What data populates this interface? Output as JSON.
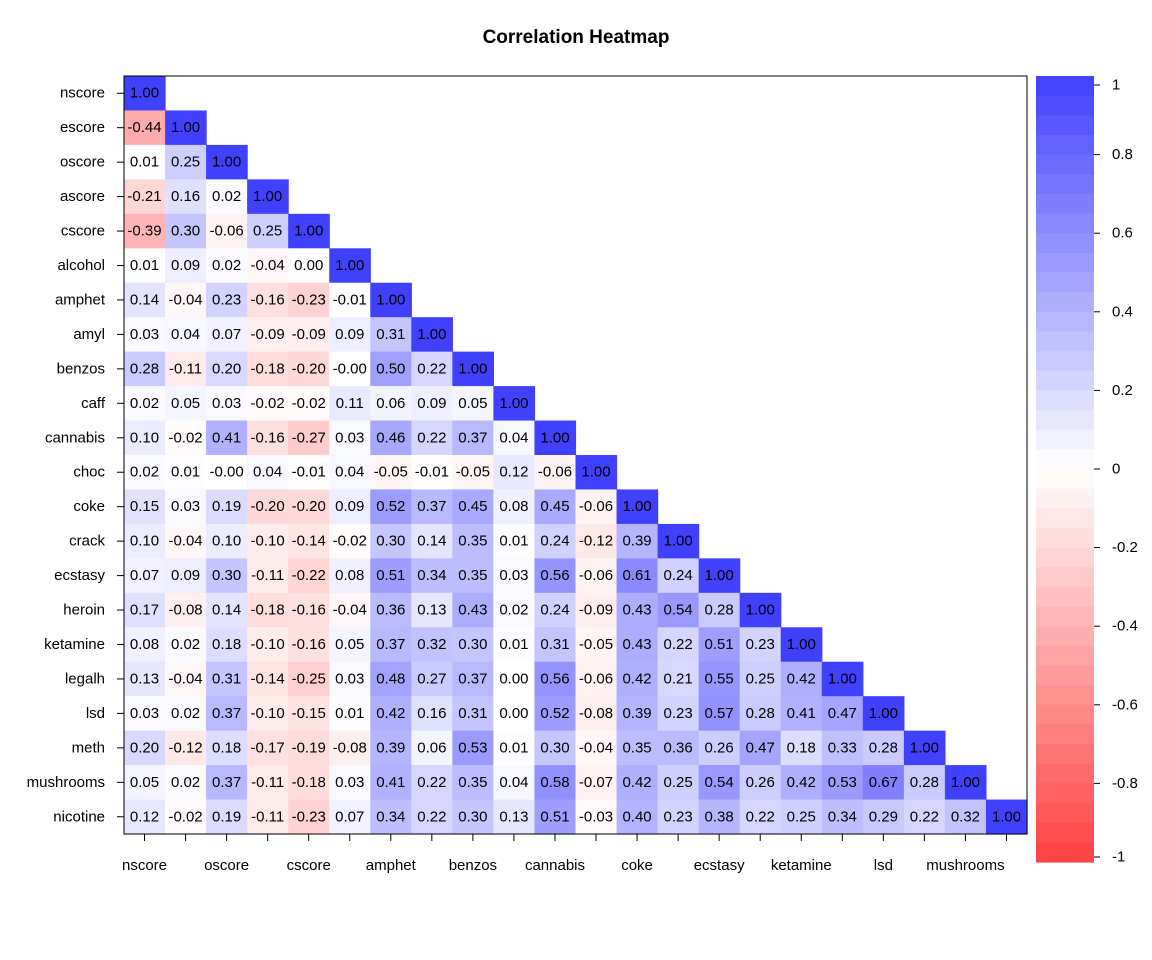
{
  "chart_data": {
    "type": "heatmap",
    "title": "Correlation Heatmap",
    "variables": [
      "nscore",
      "escore",
      "oscore",
      "ascore",
      "cscore",
      "alcohol",
      "amphet",
      "amyl",
      "benzos",
      "caff",
      "cannabis",
      "choc",
      "coke",
      "crack",
      "ecstasy",
      "heroin",
      "ketamine",
      "legalh",
      "lsd",
      "meth",
      "mushrooms",
      "nicotine"
    ],
    "x_tick_labels": [
      "nscore",
      "oscore",
      "cscore",
      "amphet",
      "benzos",
      "cannabis",
      "coke",
      "ecstasy",
      "ketamine",
      "lsd",
      "mushrooms"
    ],
    "matrix_lower": [
      [
        "1.00"
      ],
      [
        "-0.44",
        "1.00"
      ],
      [
        "0.01",
        "0.25",
        "1.00"
      ],
      [
        "-0.21",
        "0.16",
        "0.02",
        "1.00"
      ],
      [
        "-0.39",
        "0.30",
        "-0.06",
        "0.25",
        "1.00"
      ],
      [
        "0.01",
        "0.09",
        "0.02",
        "-0.04",
        "0.00",
        "1.00"
      ],
      [
        "0.14",
        "-0.04",
        "0.23",
        "-0.16",
        "-0.23",
        "-0.01",
        "1.00"
      ],
      [
        "0.03",
        "0.04",
        "0.07",
        "-0.09",
        "-0.09",
        "0.09",
        "0.31",
        "1.00"
      ],
      [
        "0.28",
        "-0.11",
        "0.20",
        "-0.18",
        "-0.20",
        "-0.00",
        "0.50",
        "0.22",
        "1.00"
      ],
      [
        "0.02",
        "0.05",
        "0.03",
        "-0.02",
        "-0.02",
        "0.11",
        "0.06",
        "0.09",
        "0.05",
        "1.00"
      ],
      [
        "0.10",
        "-0.02",
        "0.41",
        "-0.16",
        "-0.27",
        "0.03",
        "0.46",
        "0.22",
        "0.37",
        "0.04",
        "1.00"
      ],
      [
        "0.02",
        "0.01",
        "-0.00",
        "0.04",
        "-0.01",
        "0.04",
        "-0.05",
        "-0.01",
        "-0.05",
        "0.12",
        "-0.06",
        "1.00"
      ],
      [
        "0.15",
        "0.03",
        "0.19",
        "-0.20",
        "-0.20",
        "0.09",
        "0.52",
        "0.37",
        "0.45",
        "0.08",
        "0.45",
        "-0.06",
        "1.00"
      ],
      [
        "0.10",
        "-0.04",
        "0.10",
        "-0.10",
        "-0.14",
        "-0.02",
        "0.30",
        "0.14",
        "0.35",
        "0.01",
        "0.24",
        "-0.12",
        "0.39",
        "1.00"
      ],
      [
        "0.07",
        "0.09",
        "0.30",
        "-0.11",
        "-0.22",
        "0.08",
        "0.51",
        "0.34",
        "0.35",
        "0.03",
        "0.56",
        "-0.06",
        "0.61",
        "0.24",
        "1.00"
      ],
      [
        "0.17",
        "-0.08",
        "0.14",
        "-0.18",
        "-0.16",
        "-0.04",
        "0.36",
        "0.13",
        "0.43",
        "0.02",
        "0.24",
        "-0.09",
        "0.43",
        "0.54",
        "0.28",
        "1.00"
      ],
      [
        "0.08",
        "0.02",
        "0.18",
        "-0.10",
        "-0.16",
        "0.05",
        "0.37",
        "0.32",
        "0.30",
        "0.01",
        "0.31",
        "-0.05",
        "0.43",
        "0.22",
        "0.51",
        "0.23",
        "1.00"
      ],
      [
        "0.13",
        "-0.04",
        "0.31",
        "-0.14",
        "-0.25",
        "0.03",
        "0.48",
        "0.27",
        "0.37",
        "0.00",
        "0.56",
        "-0.06",
        "0.42",
        "0.21",
        "0.55",
        "0.25",
        "0.42",
        "1.00"
      ],
      [
        "0.03",
        "0.02",
        "0.37",
        "-0.10",
        "-0.15",
        "0.01",
        "0.42",
        "0.16",
        "0.31",
        "0.00",
        "0.52",
        "-0.08",
        "0.39",
        "0.23",
        "0.57",
        "0.28",
        "0.41",
        "0.47",
        "1.00"
      ],
      [
        "0.20",
        "-0.12",
        "0.18",
        "-0.17",
        "-0.19",
        "-0.08",
        "0.39",
        "0.06",
        "0.53",
        "0.01",
        "0.30",
        "-0.04",
        "0.35",
        "0.36",
        "0.26",
        "0.47",
        "0.18",
        "0.33",
        "0.28",
        "1.00"
      ],
      [
        "0.05",
        "0.02",
        "0.37",
        "-0.11",
        "-0.18",
        "0.03",
        "0.41",
        "0.22",
        "0.35",
        "0.04",
        "0.58",
        "-0.07",
        "0.42",
        "0.25",
        "0.54",
        "0.26",
        "0.42",
        "0.53",
        "0.67",
        "0.28",
        "1.00"
      ],
      [
        "0.12",
        "-0.02",
        "0.19",
        "-0.11",
        "-0.23",
        "0.07",
        "0.34",
        "0.22",
        "0.30",
        "0.13",
        "0.51",
        "-0.03",
        "0.40",
        "0.23",
        "0.38",
        "0.22",
        "0.25",
        "0.34",
        "0.29",
        "0.22",
        "0.32",
        "1.00"
      ]
    ],
    "colorbar": {
      "range": [
        -1,
        1
      ],
      "ticks": [
        "1",
        "0.8",
        "0.6",
        "0.4",
        "0.2",
        "0",
        "-0.2",
        "-0.4",
        "-0.6",
        "-0.8",
        "-1"
      ],
      "low_color": "#FF4040",
      "mid_color": "#FFFFFF",
      "high_color": "#4040FF"
    },
    "legend_position": "right",
    "grid": false
  }
}
